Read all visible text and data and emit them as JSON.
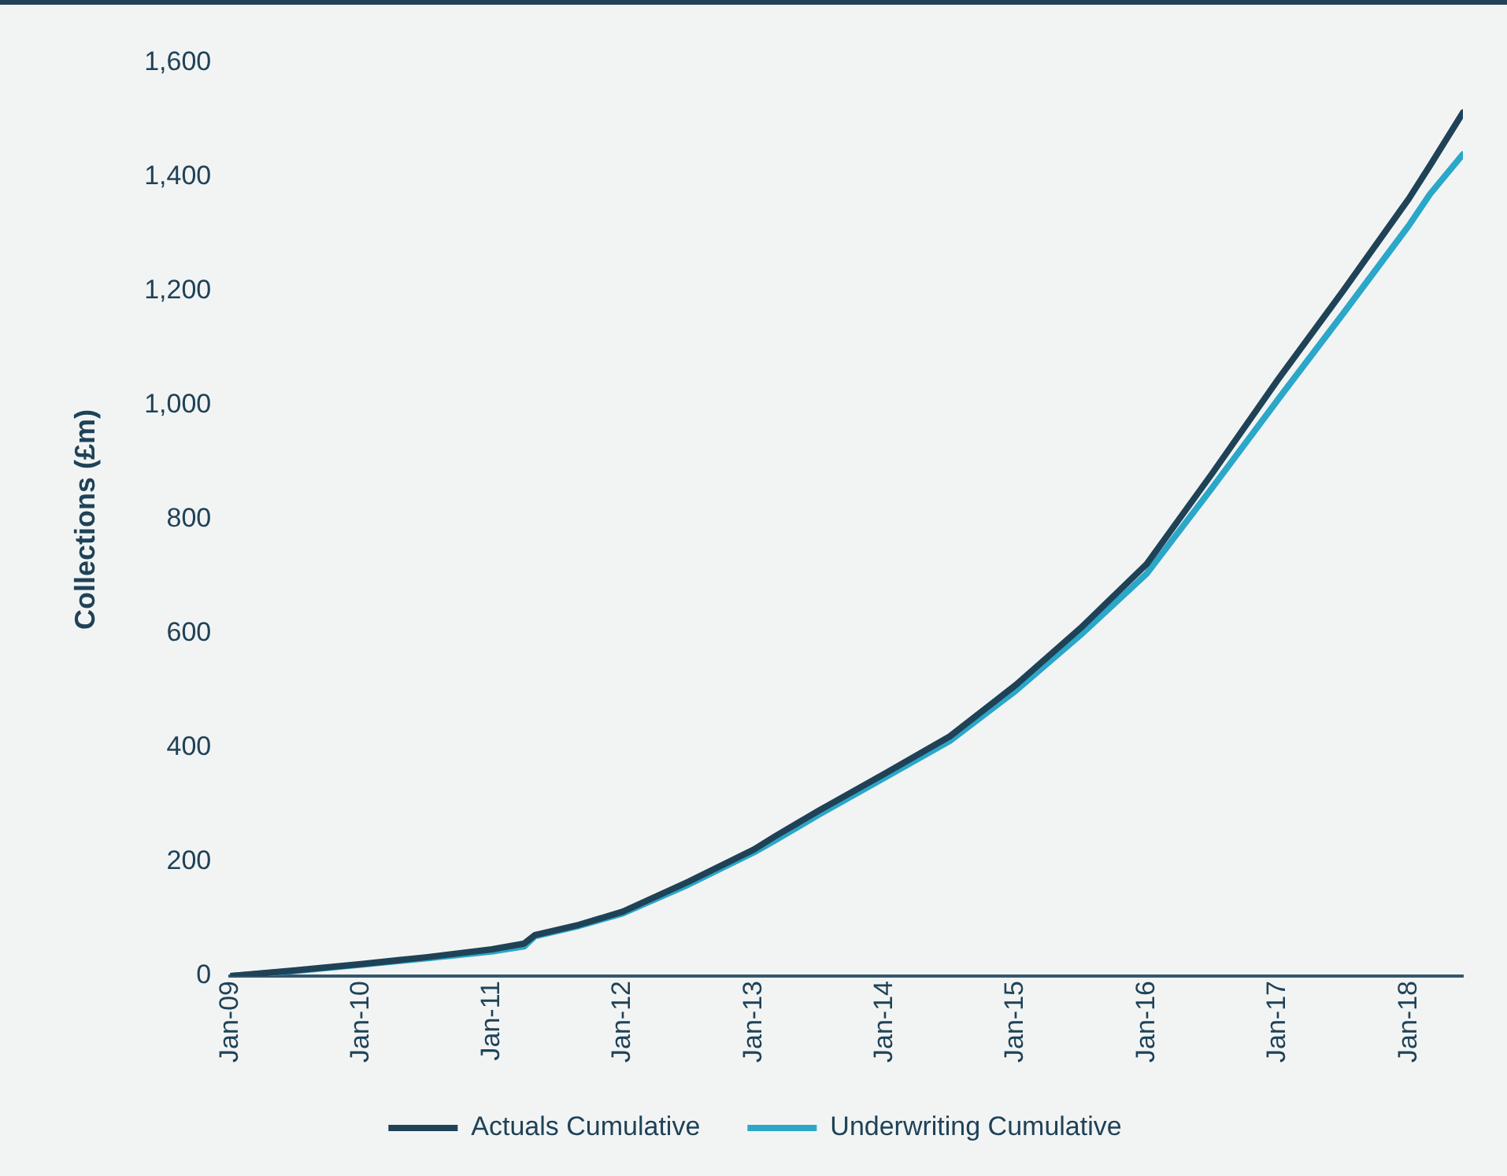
{
  "chart_data": {
    "type": "line",
    "ylabel": "Collections (£m)",
    "xlim": [
      "2009-01",
      "2018-06"
    ],
    "xticks": [
      {
        "value": "2009-01",
        "label": "Jan-09"
      },
      {
        "value": "2010-01",
        "label": "Jan-10"
      },
      {
        "value": "2011-01",
        "label": "Jan-11"
      },
      {
        "value": "2012-01",
        "label": "Jan-12"
      },
      {
        "value": "2013-01",
        "label": "Jan-13"
      },
      {
        "value": "2014-01",
        "label": "Jan-14"
      },
      {
        "value": "2015-01",
        "label": "Jan-15"
      },
      {
        "value": "2016-01",
        "label": "Jan-16"
      },
      {
        "value": "2017-01",
        "label": "Jan-17"
      },
      {
        "value": "2018-01",
        "label": "Jan-18"
      }
    ],
    "ylim": [
      0,
      1600
    ],
    "yticks": [
      0,
      200,
      400,
      600,
      800,
      {
        "value": 1000,
        "label": "1,000"
      },
      {
        "value": 1200,
        "label": "1,200"
      },
      {
        "value": 1400,
        "label": "1,400"
      },
      {
        "value": 1600,
        "label": "1,600"
      }
    ],
    "x": [
      "2009-01",
      "2009-07",
      "2010-01",
      "2010-07",
      "2011-01",
      "2011-04",
      "2011-05",
      "2011-09",
      "2012-01",
      "2012-07",
      "2013-01",
      "2013-03",
      "2013-07",
      "2014-01",
      "2014-07",
      "2015-01",
      "2015-07",
      "2016-01",
      "2016-07",
      "2017-01",
      "2017-07",
      "2018-01",
      "2018-03",
      "2018-06"
    ],
    "series": [
      {
        "name": "Actuals Cumulative",
        "color": "#1f4257",
        "values": [
          0,
          10,
          21,
          33,
          47,
          57,
          72,
          90,
          113,
          165,
          222,
          245,
          290,
          355,
          420,
          510,
          610,
          722,
          880,
          1045,
          1200,
          1362,
          1420,
          1513
        ]
      },
      {
        "name": "Underwriting Cumulative",
        "color": "#2aa7c9",
        "values": [
          0,
          9,
          20,
          31,
          43,
          52,
          70,
          88,
          110,
          160,
          217,
          238,
          283,
          348,
          412,
          500,
          598,
          705,
          855,
          1010,
          1160,
          1315,
          1370,
          1440
        ]
      }
    ],
    "grid": false,
    "legend": "bottom",
    "marker": "none",
    "line_style": "solid"
  }
}
